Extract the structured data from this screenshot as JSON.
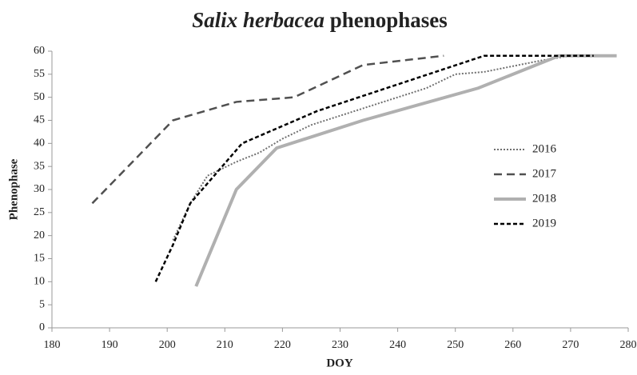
{
  "chart_data": {
    "type": "line",
    "title": [
      "Salix herbacea",
      "phenophases"
    ],
    "xlabel": "DOY",
    "ylabel": "Phenophase",
    "xlim": [
      180,
      280
    ],
    "xticks": [
      180,
      190,
      200,
      210,
      220,
      230,
      240,
      250,
      260,
      270,
      280
    ],
    "ylim": [
      0,
      60
    ],
    "yticks": [
      0,
      5,
      10,
      15,
      20,
      25,
      30,
      35,
      40,
      45,
      50,
      55,
      60
    ],
    "grid": false,
    "legend": "right",
    "series": [
      {
        "name": "2016",
        "color": "#707070",
        "dash": "dotted",
        "width": 2,
        "x": [
          201,
          204,
          207,
          212,
          216,
          220,
          225,
          235,
          245,
          250,
          255,
          265,
          270,
          273
        ],
        "values": [
          19,
          27,
          33,
          36,
          38,
          41,
          44,
          48,
          52,
          55,
          55.5,
          58,
          59,
          59
        ]
      },
      {
        "name": "2017",
        "color": "#505050",
        "dash": "dashed",
        "width": 2.5,
        "x": [
          187,
          201,
          212,
          222,
          234,
          248
        ],
        "values": [
          27,
          45,
          49,
          50,
          57,
          59
        ]
      },
      {
        "name": "2018",
        "color": "#b0b0b0",
        "dash": "solid",
        "width": 4,
        "x": [
          205,
          212,
          219,
          234,
          254,
          268,
          278
        ],
        "values": [
          9,
          30,
          39,
          45,
          52,
          59,
          59
        ]
      },
      {
        "name": "2019",
        "color": "#000000",
        "dash": "short",
        "width": 2.5,
        "x": [
          198,
          201,
          204,
          213,
          226,
          255,
          274
        ],
        "values": [
          10,
          18,
          27,
          40,
          47,
          59,
          59
        ]
      }
    ]
  }
}
